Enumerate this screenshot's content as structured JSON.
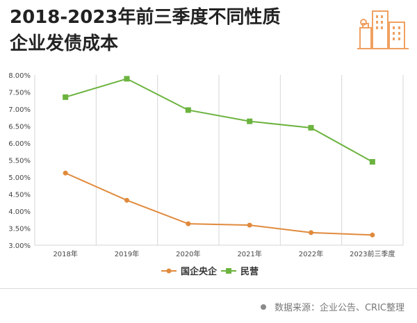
{
  "header": {
    "title_line1": "2018-2023年前三季度不同性质",
    "title_line2": "企业发债成本"
  },
  "footer": {
    "source": "数据来源：企业公告、CRIC整理"
  },
  "colors": {
    "soe": "#e08a3c",
    "private": "#6cb33f",
    "grid": "#d6d6d6",
    "axis_text": "#444444",
    "logo": "#f0a060"
  },
  "icons": {
    "logo": "city-buildings-icon"
  },
  "chart_data": {
    "type": "line",
    "categories": [
      "2018年",
      "2019年",
      "2020年",
      "2021年",
      "2022年",
      "2023前三季度"
    ],
    "yticks": [
      "3.00%",
      "3.50%",
      "4.00%",
      "4.50%",
      "5.00%",
      "5.50%",
      "6.00%",
      "6.50%",
      "7.00%",
      "7.50%",
      "8.00%"
    ],
    "ylim": [
      3.0,
      8.0
    ],
    "grid": "vertical",
    "legend_position": "bottom-center",
    "series": [
      {
        "name": "国企央企",
        "values": [
          5.12,
          4.32,
          3.63,
          3.59,
          3.37,
          3.3
        ],
        "marker": "circle"
      },
      {
        "name": "民营",
        "values": [
          7.35,
          7.89,
          6.97,
          6.64,
          6.45,
          5.45
        ],
        "marker": "square"
      }
    ]
  }
}
